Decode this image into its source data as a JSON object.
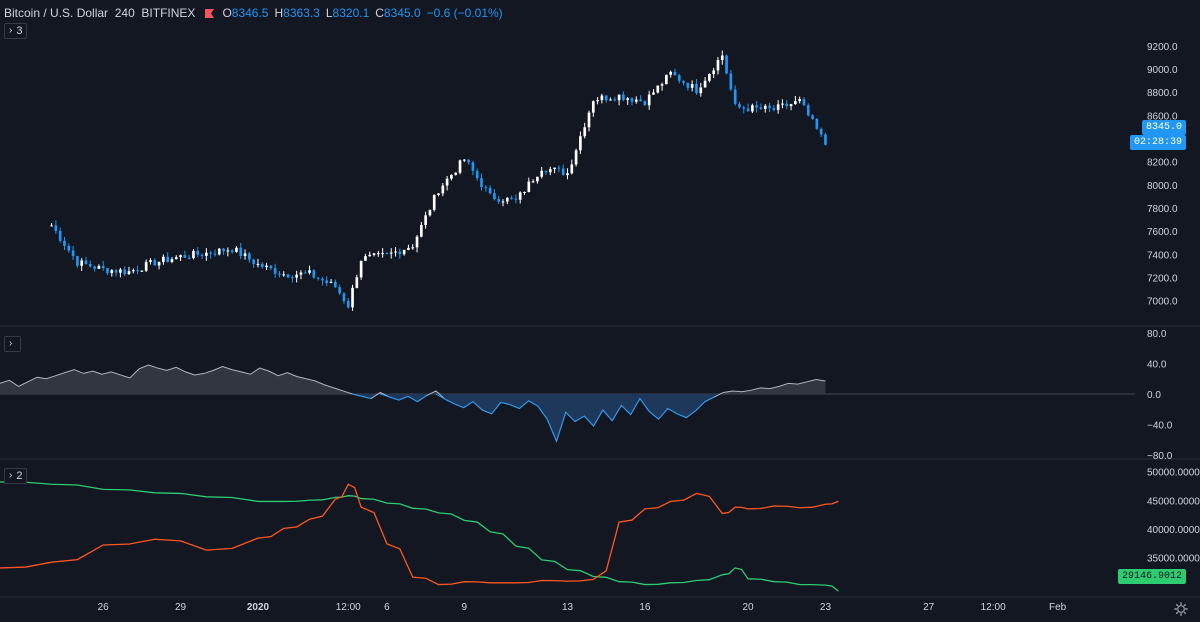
{
  "header": {
    "symbol": "Bitcoin / U.S. Dollar",
    "interval": "240",
    "exchange": "BITFINEX",
    "open_label": "O",
    "open": "8346.5",
    "high_label": "H",
    "high": "8363.3",
    "low_label": "L",
    "low": "8320.1",
    "close_label": "C",
    "close": "8345.0",
    "change": "−0.6 (−0.01%)"
  },
  "pane_toggles": {
    "main": "3",
    "oscillator": "",
    "bottom": "2"
  },
  "price_labels": {
    "last_price": "8345.0",
    "countdown": "02:28:39",
    "line_value": "29146.9012"
  },
  "colors": {
    "background": "#131722",
    "up_candle": "#ffffff",
    "down_candle": "#2196f3",
    "oscillator_positive": "#b2b5be",
    "oscillator_negative": "#2a5d9a",
    "series_green": "#2ecc71",
    "series_orange": "#ff5722",
    "axis_text": "#d1d4dc"
  },
  "icons": {
    "flag": "flag-icon",
    "settings": "settings-gear-icon",
    "chevron": "chevron-right-icon"
  },
  "chart_data": [
    {
      "type": "candlestick",
      "pane": "main",
      "y_ticks": [
        "7000.0",
        "7200.0",
        "7400.0",
        "7600.0",
        "7800.0",
        "8000.0",
        "8200.0",
        "8400.0",
        "8600.0",
        "8800.0",
        "9000.0",
        "9200.0"
      ],
      "ylim": [
        6850,
        9250
      ],
      "x_ticks": [
        "26",
        "29",
        "2020",
        "12:00",
        "6",
        "9",
        "13",
        "16",
        "20",
        "23",
        "27",
        "12:00",
        "Feb"
      ],
      "x_tick_dates": [
        "2019-12-26",
        "2019-12-29",
        "2020-01-01",
        "2020-01-04 12:00",
        "2020-01-06",
        "2020-01-09",
        "2020-01-13",
        "2020-01-16",
        "2020-01-20",
        "2020-01-23",
        "2020-01-27",
        "2020-01-29 12:00",
        "2020-02-01"
      ],
      "xlim": [
        "2019-12-22",
        "2020-02-04"
      ],
      "close_path": [
        [
          "2019-12-24",
          7650
        ],
        [
          "2019-12-25",
          7330
        ],
        [
          "2019-12-26",
          7270
        ],
        [
          "2019-12-27",
          7250
        ],
        [
          "2019-12-28",
          7330
        ],
        [
          "2019-12-29",
          7380
        ],
        [
          "2019-12-30",
          7410
        ],
        [
          "2019-12-31",
          7450
        ],
        [
          "2020-01-01",
          7310
        ],
        [
          "2020-01-02",
          7230
        ],
        [
          "2020-01-03",
          7230
        ],
        [
          "2020-01-04",
          7120
        ],
        [
          "2020-01-04 12:00",
          6960
        ],
        [
          "2020-01-05",
          7360
        ],
        [
          "2020-01-06",
          7390
        ],
        [
          "2020-01-07",
          7480
        ],
        [
          "2020-01-08",
          7960
        ],
        [
          "2020-01-09",
          8220
        ],
        [
          "2020-01-10",
          7900
        ],
        [
          "2020-01-11",
          7860
        ],
        [
          "2020-01-12",
          8150
        ],
        [
          "2020-01-13",
          8100
        ],
        [
          "2020-01-14",
          8740
        ],
        [
          "2020-01-15",
          8770
        ],
        [
          "2020-01-16",
          8720
        ],
        [
          "2020-01-17",
          8960
        ],
        [
          "2020-01-18",
          8820
        ],
        [
          "2020-01-19",
          9120
        ],
        [
          "2020-01-19 12:00",
          8670
        ],
        [
          "2020-01-20",
          8660
        ],
        [
          "2020-01-21",
          8650
        ],
        [
          "2020-01-22",
          8720
        ],
        [
          "2020-01-23",
          8350
        ]
      ],
      "last_price": 8345.0
    },
    {
      "type": "area",
      "pane": "oscillator",
      "y_ticks": [
        "80.0",
        "40.0",
        "0.0",
        "−40.0",
        "−80.0"
      ],
      "ylim": [
        -80,
        80
      ],
      "values": [
        14,
        18,
        10,
        16,
        22,
        20,
        24,
        28,
        32,
        27,
        30,
        26,
        29,
        25,
        21,
        33,
        38,
        34,
        31,
        35,
        29,
        25,
        27,
        31,
        36,
        32,
        29,
        26,
        34,
        30,
        24,
        28,
        23,
        20,
        17,
        12,
        8,
        4,
        0,
        -3,
        -6,
        2,
        -4,
        -8,
        -3,
        -10,
        -2,
        4,
        -7,
        -13,
        -18,
        -10,
        -21,
        -26,
        -11,
        -14,
        -19,
        -9,
        -16,
        -33,
        -62,
        -24,
        -36,
        -29,
        -42,
        -21,
        -35,
        -15,
        -27,
        -6,
        -23,
        -33,
        -19,
        -26,
        -31,
        -22,
        -10,
        -4,
        2,
        4,
        3,
        5,
        8,
        7,
        10,
        14,
        13,
        16,
        19,
        17
      ]
    },
    {
      "type": "line",
      "pane": "bottom",
      "y_ticks": [
        "50000.0000",
        "45000.0000",
        "40000.0000",
        "35000.0000"
      ],
      "ylim": [
        29000,
        51500
      ],
      "x": [
        "2019-12-22",
        "2019-12-24",
        "2019-12-26",
        "2019-12-28",
        "2019-12-30",
        "2020-01-01",
        "2020-01-02",
        "2020-01-03",
        "2020-01-04",
        "2020-01-04 12:00",
        "2020-01-05",
        "2020-01-06",
        "2020-01-07",
        "2020-01-08",
        "2020-01-09",
        "2020-01-10",
        "2020-01-11",
        "2020-01-12",
        "2020-01-13",
        "2020-01-14",
        "2020-01-15",
        "2020-01-16",
        "2020-01-17",
        "2020-01-18",
        "2020-01-19",
        "2020-01-19 12:00",
        "2020-01-20",
        "2020-01-21",
        "2020-01-22",
        "2020-01-23",
        "2020-01-23 12:00"
      ],
      "series": [
        {
          "values": [
            48200,
            47800,
            46900,
            46300,
            45600,
            44800,
            44800,
            45000,
            45500,
            45800,
            45300,
            44500,
            43600,
            42800,
            41500,
            39500,
            37000,
            34600,
            32900,
            31700,
            30800,
            30300,
            30600,
            31000,
            32000,
            33200,
            31300,
            30800,
            30300,
            30200,
            29150
          ]
        },
        {
          "values": [
            33200,
            34200,
            37200,
            38200,
            36300,
            38400,
            40100,
            41700,
            45200,
            47800,
            43800,
            37400,
            31600,
            30300,
            30800,
            30600,
            30600,
            31000,
            30900,
            31200,
            41200,
            43500,
            44800,
            46200,
            42700,
            43800,
            43500,
            44000,
            43700,
            44300,
            44800
          ]
        }
      ],
      "last_value": 29146.9012
    }
  ]
}
